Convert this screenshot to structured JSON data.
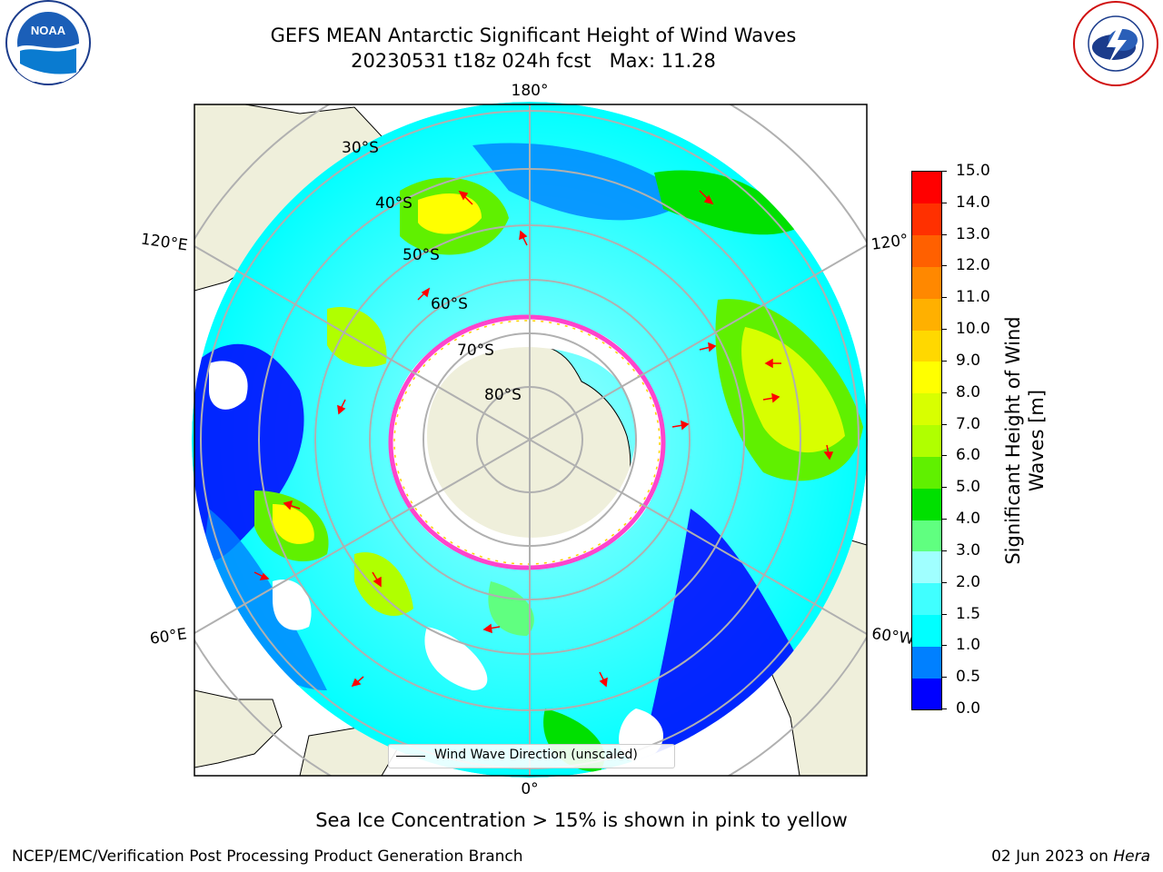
{
  "title": {
    "line1": "GEFS MEAN Antarctic Significant Height of Wind Waves",
    "line2": "20230531 t18z 024h fcst   Max: 11.28"
  },
  "logos": {
    "noara": "NOAA",
    "noaa_ring": "NATIONAL OCEANIC AND ATMOSPHERIC ADMINISTRATION · U.S. DEPARTMENT OF COMMERCE",
    "nws_ring": "NATIONAL WEATHER SERVICE"
  },
  "map": {
    "longitude_labels": {
      "top": "180°",
      "bottom": "0°",
      "left_upper": "120°E",
      "left_lower": "60°E",
      "right_upper": "120°",
      "right_lower": "60°W"
    },
    "latitude_labels": [
      "30°S",
      "40°S",
      "50°S",
      "60°S",
      "70°S",
      "80°S"
    ],
    "legend": "Wind Wave Direction (unscaled)",
    "colors": {
      "land": "#efefdb",
      "ocean_calm": "#ffffff",
      "ice_edge": "#ff44cc",
      "arrow": "#ff0000",
      "grid": "#b0b0b0"
    }
  },
  "colorbar": {
    "label": "Significant Height of Wind Waves [m]",
    "ticks": [
      "0.0",
      "0.5",
      "1.0",
      "1.5",
      "2.0",
      "3.0",
      "4.0",
      "5.0",
      "6.0",
      "7.0",
      "8.0",
      "9.0",
      "10.0",
      "11.0",
      "12.0",
      "13.0",
      "14.0",
      "15.0"
    ],
    "colors": [
      "#0000ff",
      "#0080ff",
      "#00ffff",
      "#40ffff",
      "#a0ffff",
      "#60ff80",
      "#00e000",
      "#60f000",
      "#b0ff00",
      "#d8ff00",
      "#ffff00",
      "#ffd800",
      "#ffb000",
      "#ff8800",
      "#ff6000",
      "#ff3000",
      "#ff0000"
    ]
  },
  "note": "Sea Ice Concentration > 15% is shown in pink to yellow",
  "credit": "NCEP/EMC/Verification Post Processing Product Generation Branch",
  "date": "02 Jun 2023 on",
  "date_machine": "Hera"
}
